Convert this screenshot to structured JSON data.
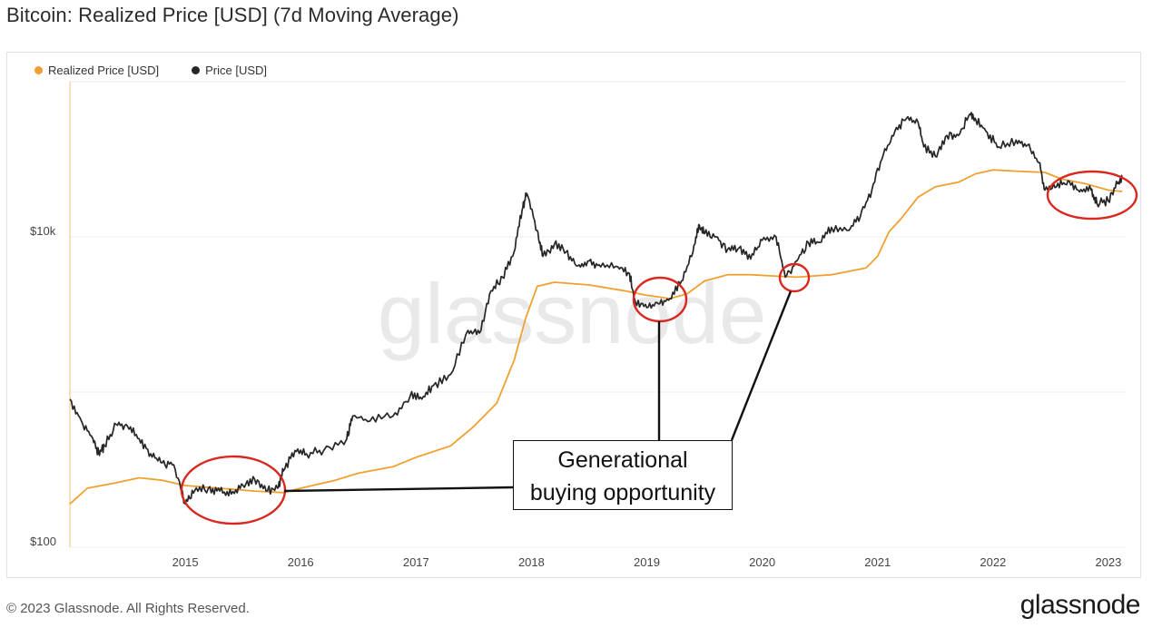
{
  "title": "Bitcoin: Realized Price [USD] (7d Moving Average)",
  "footer": "© 2023 Glassnode. All Rights Reserved.",
  "brand": "glassnode",
  "watermark": "glassnode",
  "annotation": {
    "line1": "Generational",
    "line2": "buying opportunity"
  },
  "colors": {
    "realized": "#f0a030",
    "price": "#262626",
    "circle": "#d9281f"
  },
  "chart_data": {
    "type": "line",
    "title": "Bitcoin: Realized Price [USD] (7d Moving Average)",
    "y_scale": "log",
    "ylim": [
      100,
      100000
    ],
    "y_ticks": [
      {
        "value": 100,
        "label": "$100"
      },
      {
        "value": 10000,
        "label": "$10k"
      }
    ],
    "x_ticks": [
      "2015",
      "2016",
      "2017",
      "2018",
      "2019",
      "2020",
      "2021",
      "2022",
      "2023"
    ],
    "xlim": [
      2014.0,
      2023.15
    ],
    "legend": "top-left",
    "series": [
      {
        "name": "Realized Price [USD]",
        "color": "#f0a030",
        "points": [
          [
            2014.0,
            190
          ],
          [
            2014.15,
            240
          ],
          [
            2014.4,
            260
          ],
          [
            2014.6,
            280
          ],
          [
            2014.8,
            270
          ],
          [
            2015.0,
            250
          ],
          [
            2015.3,
            240
          ],
          [
            2015.6,
            230
          ],
          [
            2015.85,
            225
          ],
          [
            2016.0,
            240
          ],
          [
            2016.3,
            270
          ],
          [
            2016.5,
            300
          ],
          [
            2016.8,
            330
          ],
          [
            2017.0,
            380
          ],
          [
            2017.3,
            450
          ],
          [
            2017.5,
            600
          ],
          [
            2017.7,
            850
          ],
          [
            2017.85,
            1600
          ],
          [
            2017.95,
            3000
          ],
          [
            2018.05,
            4800
          ],
          [
            2018.2,
            5100
          ],
          [
            2018.5,
            4900
          ],
          [
            2018.8,
            4500
          ],
          [
            2019.0,
            4200
          ],
          [
            2019.2,
            4000
          ],
          [
            2019.35,
            4300
          ],
          [
            2019.5,
            5200
          ],
          [
            2019.7,
            5700
          ],
          [
            2019.9,
            5700
          ],
          [
            2020.1,
            5600
          ],
          [
            2020.3,
            5500
          ],
          [
            2020.6,
            5700
          ],
          [
            2020.9,
            6300
          ],
          [
            2021.0,
            7500
          ],
          [
            2021.1,
            10800
          ],
          [
            2021.2,
            13000
          ],
          [
            2021.35,
            18000
          ],
          [
            2021.5,
            21000
          ],
          [
            2021.7,
            22500
          ],
          [
            2021.85,
            25500
          ],
          [
            2022.0,
            27000
          ],
          [
            2022.2,
            26500
          ],
          [
            2022.45,
            26000
          ],
          [
            2022.6,
            23500
          ],
          [
            2022.8,
            22000
          ],
          [
            2023.0,
            20000
          ],
          [
            2023.12,
            19600
          ]
        ]
      },
      {
        "name": "Price [USD]",
        "color": "#262626",
        "points": [
          [
            2014.0,
            900
          ],
          [
            2014.1,
            650
          ],
          [
            2014.2,
            500
          ],
          [
            2014.25,
            400
          ],
          [
            2014.3,
            450
          ],
          [
            2014.4,
            620
          ],
          [
            2014.5,
            600
          ],
          [
            2014.6,
            500
          ],
          [
            2014.7,
            400
          ],
          [
            2014.8,
            350
          ],
          [
            2014.9,
            340
          ],
          [
            2015.0,
            190
          ],
          [
            2015.08,
            230
          ],
          [
            2015.2,
            240
          ],
          [
            2015.3,
            230
          ],
          [
            2015.4,
            220
          ],
          [
            2015.5,
            250
          ],
          [
            2015.6,
            275
          ],
          [
            2015.7,
            230
          ],
          [
            2015.8,
            240
          ],
          [
            2015.85,
            310
          ],
          [
            2015.95,
            420
          ],
          [
            2016.05,
            400
          ],
          [
            2016.2,
            420
          ],
          [
            2016.4,
            500
          ],
          [
            2016.45,
            700
          ],
          [
            2016.6,
            650
          ],
          [
            2016.8,
            700
          ],
          [
            2016.95,
            950
          ],
          [
            2017.05,
            900
          ],
          [
            2017.15,
            1100
          ],
          [
            2017.3,
            1300
          ],
          [
            2017.45,
            2500
          ],
          [
            2017.55,
            2400
          ],
          [
            2017.65,
            4500
          ],
          [
            2017.75,
            5500
          ],
          [
            2017.85,
            8000
          ],
          [
            2017.92,
            15000
          ],
          [
            2017.96,
            19000
          ],
          [
            2018.05,
            11000
          ],
          [
            2018.1,
            7500
          ],
          [
            2018.2,
            9000
          ],
          [
            2018.3,
            8000
          ],
          [
            2018.4,
            6500
          ],
          [
            2018.5,
            7000
          ],
          [
            2018.6,
            6400
          ],
          [
            2018.75,
            6400
          ],
          [
            2018.85,
            5800
          ],
          [
            2018.9,
            3800
          ],
          [
            2019.0,
            3500
          ],
          [
            2019.1,
            3700
          ],
          [
            2019.2,
            4000
          ],
          [
            2019.3,
            5200
          ],
          [
            2019.4,
            8000
          ],
          [
            2019.45,
            12000
          ],
          [
            2019.5,
            10500
          ],
          [
            2019.6,
            10000
          ],
          [
            2019.7,
            8300
          ],
          [
            2019.8,
            8500
          ],
          [
            2019.9,
            7200
          ],
          [
            2020.0,
            9500
          ],
          [
            2020.12,
            10000
          ],
          [
            2020.2,
            5500
          ],
          [
            2020.3,
            7000
          ],
          [
            2020.4,
            9200
          ],
          [
            2020.5,
            9200
          ],
          [
            2020.6,
            11500
          ],
          [
            2020.75,
            11000
          ],
          [
            2020.85,
            13500
          ],
          [
            2020.95,
            20000
          ],
          [
            2021.05,
            34000
          ],
          [
            2021.15,
            48000
          ],
          [
            2021.25,
            58000
          ],
          [
            2021.35,
            55000
          ],
          [
            2021.4,
            38000
          ],
          [
            2021.5,
            33000
          ],
          [
            2021.6,
            45000
          ],
          [
            2021.7,
            45000
          ],
          [
            2021.8,
            62000
          ],
          [
            2021.85,
            57000
          ],
          [
            2021.95,
            47000
          ],
          [
            2022.05,
            38000
          ],
          [
            2022.2,
            42000
          ],
          [
            2022.3,
            39000
          ],
          [
            2022.4,
            30000
          ],
          [
            2022.45,
            20000
          ],
          [
            2022.55,
            21000
          ],
          [
            2022.65,
            23000
          ],
          [
            2022.75,
            19500
          ],
          [
            2022.85,
            20000
          ],
          [
            2022.9,
            16500
          ],
          [
            2023.0,
            17000
          ],
          [
            2023.08,
            22000
          ],
          [
            2023.12,
            23500
          ]
        ]
      }
    ]
  }
}
